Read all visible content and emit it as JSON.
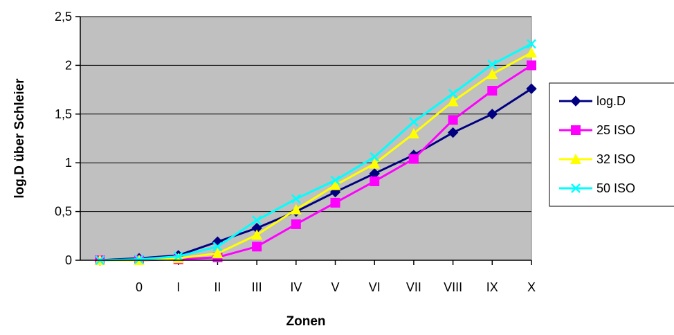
{
  "chart_data": {
    "type": "line",
    "title": "",
    "xlabel": "Zonen",
    "ylabel": "log.D über Schleier",
    "categories": [
      "",
      "0",
      "I",
      "II",
      "III",
      "IV",
      "V",
      "VI",
      "VII",
      "VIII",
      "IX",
      "X"
    ],
    "ylim": [
      0,
      2.5
    ],
    "yticks": [
      "0",
      "0,5",
      "1",
      "1,5",
      "2",
      "2,5"
    ],
    "ytick_values": [
      0,
      0.5,
      1,
      1.5,
      2,
      2.5
    ],
    "grid": true,
    "plot_background": "#c0c0c0",
    "legend_position": "right",
    "series": [
      {
        "name": "log.D",
        "color": "#000080",
        "marker": "diamond",
        "values": [
          0,
          0.02,
          0.05,
          0.19,
          0.33,
          0.5,
          0.7,
          0.89,
          1.08,
          1.31,
          1.5,
          1.76
        ]
      },
      {
        "name": "25 ISO",
        "color": "#ff00ff",
        "marker": "square",
        "values": [
          0,
          0.0,
          0.01,
          0.03,
          0.14,
          0.37,
          0.59,
          0.81,
          1.04,
          1.44,
          1.74,
          2.0
        ]
      },
      {
        "name": "32 ISO",
        "color": "#ffff00",
        "marker": "triangle",
        "values": [
          0,
          0.0,
          0.02,
          0.07,
          0.26,
          0.52,
          0.77,
          0.99,
          1.3,
          1.63,
          1.91,
          2.13
        ]
      },
      {
        "name": "50 ISO",
        "color": "#00ffff",
        "marker": "x",
        "values": [
          0,
          0.01,
          0.04,
          0.14,
          0.41,
          0.63,
          0.82,
          1.06,
          1.42,
          1.71,
          2.01,
          2.22
        ]
      }
    ]
  }
}
